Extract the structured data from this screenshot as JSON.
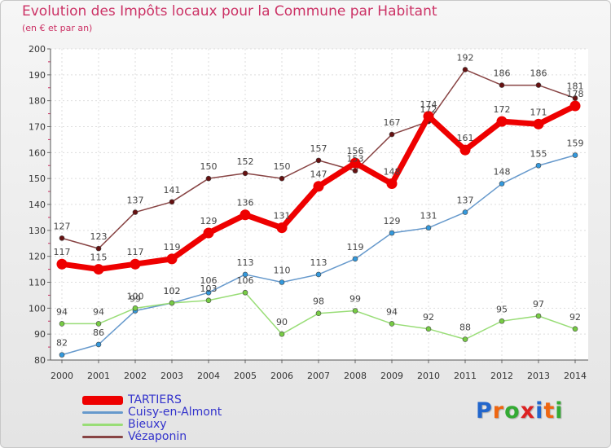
{
  "header": {
    "title": "Evolution des Impôts locaux pour la Commune par Habitant",
    "subtitle": "(en € et par an)"
  },
  "logo": {
    "letters": [
      "P",
      "r",
      "o",
      "x",
      "i",
      "t",
      "i"
    ],
    "colors": [
      "#2266cc",
      "#ee6611",
      "#33aa33",
      "#dd2222",
      "#2266cc",
      "#ee6611",
      "#33aa33"
    ]
  },
  "chart_data": {
    "type": "line",
    "x": [
      "2000",
      "2001",
      "2002",
      "2003",
      "2004",
      "2005",
      "2006",
      "2007",
      "2008",
      "2009",
      "2010",
      "2011",
      "2012",
      "2013",
      "2014"
    ],
    "title": "Evolution des Impôts locaux pour la Commune par Habitant",
    "subtitle": "(en € et par an)",
    "xlabel": "",
    "ylabel": "",
    "ylim": [
      80,
      200
    ],
    "yticks": [
      80,
      90,
      100,
      110,
      120,
      130,
      140,
      150,
      160,
      170,
      180,
      190,
      200
    ],
    "grid": true,
    "legend_position": "bottom-left",
    "series": [
      {
        "name": "TARTIERS",
        "color": "#ee0000",
        "marker_color": "#ee0000",
        "emphasis": true,
        "values": [
          117,
          115,
          117,
          119,
          129,
          136,
          131,
          147,
          156,
          148,
          174,
          161,
          172,
          171,
          178
        ]
      },
      {
        "name": "Cuisy-en-Almont",
        "color": "#6699cc",
        "marker_color": "#3399dd",
        "emphasis": false,
        "values": [
          82,
          86,
          99,
          102,
          106,
          113,
          110,
          113,
          119,
          129,
          131,
          137,
          148,
          155,
          159
        ]
      },
      {
        "name": "Bieuxy",
        "color": "#99dd77",
        "marker_color": "#77cc44",
        "emphasis": false,
        "values": [
          94,
          94,
          100,
          102,
          103,
          106,
          90,
          98,
          99,
          94,
          92,
          88,
          95,
          97,
          92
        ]
      },
      {
        "name": "Vézaponin",
        "color": "#884444",
        "marker_color": "#661111",
        "emphasis": false,
        "values": [
          127,
          123,
          137,
          141,
          150,
          152,
          150,
          157,
          153,
          167,
          172,
          192,
          186,
          186,
          181
        ]
      }
    ]
  }
}
